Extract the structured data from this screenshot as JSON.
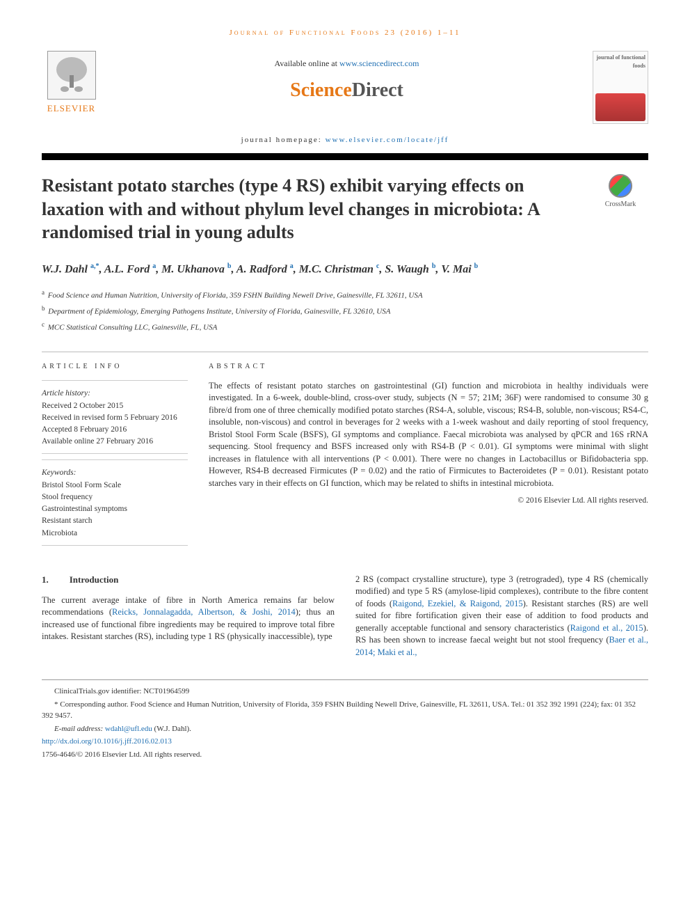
{
  "running_header": "Journal of Functional Foods 23 (2016) 1–11",
  "header": {
    "available_prefix": "Available online at ",
    "available_link": "www.sciencedirect.com",
    "brand_orange": "Science",
    "brand_gray": "Direct",
    "homepage_prefix": "journal homepage: ",
    "homepage_link": "www.elsevier.com/locate/jff",
    "elsevier_label": "ELSEVIER",
    "cover_title": "journal of functional foods"
  },
  "title": "Resistant potato starches (type 4 RS) exhibit varying effects on laxation with and without phylum level changes in microbiota: A randomised trial in young adults",
  "crossmark_label": "CrossMark",
  "authors_html": "W.J. Dahl <sup>a,*</sup>, A.L. Ford <sup>a</sup>, M. Ukhanova <sup>b</sup>, A. Radford <sup>a</sup>, M.C. Christman <sup>c</sup>, S. Waugh <sup>b</sup>, V. Mai <sup>b</sup>",
  "affiliations": [
    {
      "sup": "a",
      "text": "Food Science and Human Nutrition, University of Florida, 359 FSHN Building Newell Drive, Gainesville, FL 32611, USA"
    },
    {
      "sup": "b",
      "text": "Department of Epidemiology, Emerging Pathogens Institute, University of Florida, Gainesville, FL 32610, USA"
    },
    {
      "sup": "c",
      "text": "MCC Statistical Consulting LLC, Gainesville, FL, USA"
    }
  ],
  "article_info": {
    "heading": "ARTICLE INFO",
    "history_label": "Article history:",
    "history": [
      "Received 2 October 2015",
      "Received in revised form 5 February 2016",
      "Accepted 8 February 2016",
      "Available online 27 February 2016"
    ],
    "keywords_label": "Keywords:",
    "keywords": [
      "Bristol Stool Form Scale",
      "Stool frequency",
      "Gastrointestinal symptoms",
      "Resistant starch",
      "Microbiota"
    ]
  },
  "abstract": {
    "heading": "ABSTRACT",
    "text": "The effects of resistant potato starches on gastrointestinal (GI) function and microbiota in healthy individuals were investigated. In a 6-week, double-blind, cross-over study, subjects (N = 57; 21M; 36F) were randomised to consume 30 g fibre/d from one of three chemically modified potato starches (RS4-A, soluble, viscous; RS4-B, soluble, non-viscous; RS4-C, insoluble, non-viscous) and control in beverages for 2 weeks with a 1-week washout and daily reporting of stool frequency, Bristol Stool Form Scale (BSFS), GI symptoms and compliance. Faecal microbiota was analysed by qPCR and 16S rRNA sequencing. Stool frequency and BSFS increased only with RS4-B (P < 0.01). GI symptoms were minimal with slight increases in flatulence with all interventions (P < 0.001). There were no changes in Lactobacillus or Bifidobacteria spp. However, RS4-B decreased Firmicutes (P = 0.02) and the ratio of Firmicutes to Bacteroidetes (P = 0.01). Resistant potato starches vary in their effects on GI function, which may be related to shifts in intestinal microbiota.",
    "copyright": "© 2016 Elsevier Ltd. All rights reserved."
  },
  "body": {
    "section_number": "1.",
    "section_title": "Introduction",
    "col1_pre": "The current average intake of fibre in North America remains far below recommendations (",
    "col1_link1": "Reicks, Jonnalagadda, Albertson, & Joshi, 2014",
    "col1_post1": "); thus an increased use of functional fibre ingredients may be required to improve total fibre intakes. Resistant starches (RS), including type 1 RS (physically inaccessible), type",
    "col2_pre": "2 RS (compact crystalline structure), type 3 (retrograded), type 4 RS (chemically modified) and type 5 RS (amylose-lipid complexes), contribute to the fibre content of foods (",
    "col2_link1": "Raigond, Ezekiel, & Raigond, 2015",
    "col2_mid1": "). Resistant starches (RS) are well suited for fibre fortification given their ease of addition to food products and generally acceptable functional and sensory characteristics (",
    "col2_link2": "Raigond et al., 2015",
    "col2_mid2": "). RS has been shown to increase faecal weight but not stool frequency (",
    "col2_link3": "Baer et al., 2014; Maki et al.,"
  },
  "footnotes": {
    "trial": "ClinicalTrials.gov identifier: NCT01964599",
    "corr_label": "* Corresponding author.",
    "corr_text": " Food Science and Human Nutrition, University of Florida, 359 FSHN Building Newell Drive, Gainesville, FL 32611, USA. Tel.: 01 352 392 1991 (224); fax: 01 352 392 9457.",
    "email_label": "E-mail address: ",
    "email": "wdahl@ufl.edu",
    "email_paren": " (W.J. Dahl).",
    "doi": "http://dx.doi.org/10.1016/j.jff.2016.02.013",
    "issn_copy": "1756-4646/© 2016 Elsevier Ltd. All rights reserved."
  },
  "colors": {
    "accent": "#e67817",
    "link": "#1f6fb2",
    "text": "#333333"
  }
}
